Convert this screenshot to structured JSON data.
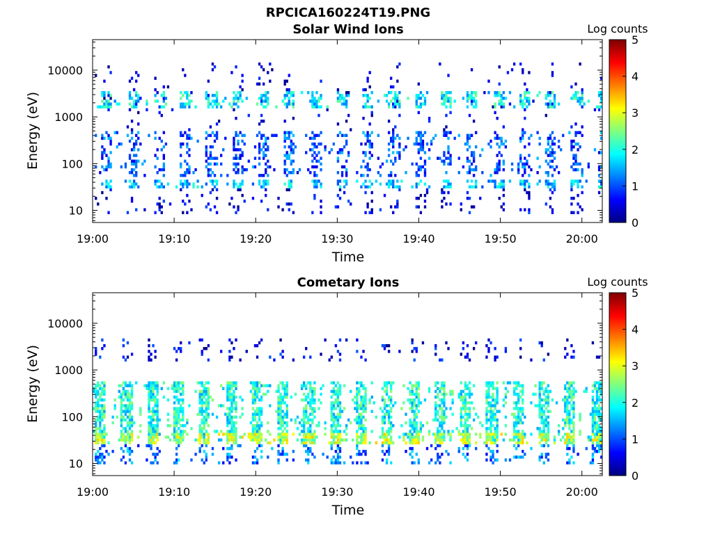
{
  "figure": {
    "title": "RPCICA160224T19.PNG"
  },
  "chart_data": [
    {
      "type": "heatmap",
      "title": "Solar Wind Ions",
      "xlabel": "Time",
      "ylabel": "Energy (eV)",
      "x_tick_labels": [
        "19:00",
        "19:10",
        "19:20",
        "19:30",
        "19:40",
        "19:50",
        "20:00"
      ],
      "y_tick_labels": [
        "10",
        "100",
        "1000",
        "10000"
      ],
      "y_scale": "log",
      "ylim": [
        5.5,
        45000
      ],
      "xlim_minutes": [
        0,
        62.5
      ],
      "colorbar": {
        "label": "Log counts",
        "range": [
          0,
          5
        ],
        "ticks": [
          "0",
          "1",
          "2",
          "3",
          "4",
          "5"
        ],
        "colormap": "jet"
      },
      "features": {
        "pulse_period_min": 3.2,
        "first_pulse_min": 1.1,
        "bands": [
          {
            "energy_ev": [
              1500,
              3500
            ],
            "level": 1.8,
            "prob": 0.55
          },
          {
            "energy_ev": [
              30,
              45
            ],
            "level": 1.6,
            "prob": 0.6
          },
          {
            "energy_ev": [
              50,
              500
            ],
            "level": 1.0,
            "prob": 0.35
          },
          {
            "energy_ev": [
              8,
              30
            ],
            "level": 0.4,
            "prob": 0.15
          },
          {
            "energy_ev": [
              500,
              15000
            ],
            "level": 0.3,
            "prob": 0.08
          }
        ]
      }
    },
    {
      "type": "heatmap",
      "title": "Cometary Ions",
      "xlabel": "Time",
      "ylabel": "Energy (eV)",
      "x_tick_labels": [
        "19:00",
        "19:10",
        "19:20",
        "19:30",
        "19:40",
        "19:50",
        "20:00"
      ],
      "y_tick_labels": [
        "10",
        "100",
        "1000",
        "10000"
      ],
      "y_scale": "log",
      "ylim": [
        5.5,
        45000
      ],
      "xlim_minutes": [
        0,
        62.5
      ],
      "colorbar": {
        "label": "Log counts",
        "range": [
          0,
          5
        ],
        "ticks": [
          "0",
          "1",
          "2",
          "3",
          "4",
          "5"
        ],
        "colormap": "jet"
      },
      "features": {
        "pulse_period_min": 3.2,
        "first_pulse_min": 0.3,
        "bands": [
          {
            "energy_ev": [
              30,
              600
            ],
            "level": 2.0,
            "prob": 0.7
          },
          {
            "energy_ev": [
              25,
              45
            ],
            "level": 2.8,
            "prob": 0.75
          },
          {
            "energy_ev": [
              10,
              25
            ],
            "level": 1.2,
            "prob": 0.3
          },
          {
            "energy_ev": [
              1500,
              4500
            ],
            "level": 0.5,
            "prob": 0.15
          }
        ]
      }
    }
  ]
}
